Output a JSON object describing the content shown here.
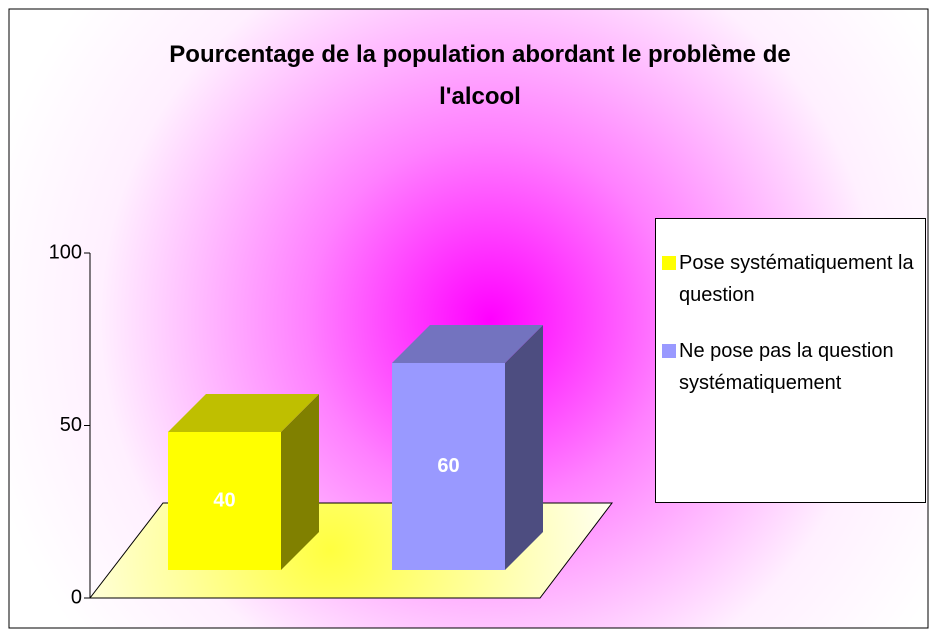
{
  "chart_data": {
    "type": "bar",
    "title": "Pourcentage de la population abordant le problème de l'alcool",
    "categories": [
      null
    ],
    "series": [
      {
        "name": "Pose systématiquement la question",
        "color": "#ffff00",
        "values": [
          40
        ]
      },
      {
        "name": "Ne pose pas la question systématiquement",
        "color": "#9999ff",
        "values": [
          60
        ]
      }
    ],
    "ylim": [
      0,
      100
    ],
    "yticks": [
      0,
      50,
      100
    ],
    "legend": "right"
  }
}
